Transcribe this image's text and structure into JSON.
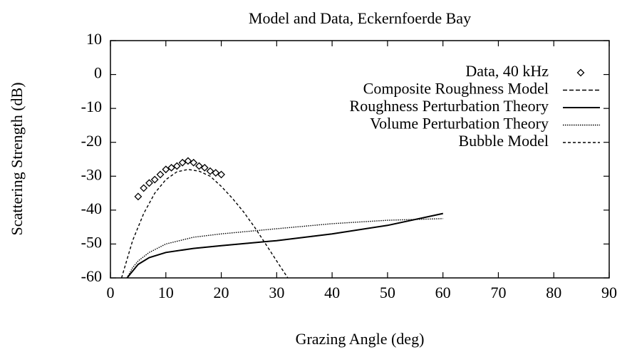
{
  "chart_data": {
    "type": "line",
    "title": "Model and Data, Eckernfoerde Bay",
    "xlabel": "Grazing Angle (deg)",
    "ylabel": "Scattering Strength (dB)",
    "xlim": [
      0,
      90
    ],
    "ylim": [
      -60,
      10
    ],
    "xticks": [
      0,
      10,
      20,
      30,
      40,
      50,
      60,
      70,
      80,
      90
    ],
    "yticks": [
      -60,
      -50,
      -40,
      -30,
      -20,
      -10,
      0,
      10
    ],
    "legend": "top-right",
    "series": [
      {
        "name": "Data, 40 kHz",
        "color": "#000000",
        "style": "points",
        "x": [
          5,
          6,
          7,
          8,
          9,
          10,
          11,
          12,
          13,
          14,
          15,
          16,
          17,
          18,
          19,
          20
        ],
        "values": [
          -36,
          -33.5,
          -32,
          -31,
          -29.5,
          -28,
          -27.5,
          -27,
          -26,
          -25.5,
          -26,
          -27,
          -27.5,
          -28.5,
          -29,
          -29.5
        ]
      },
      {
        "name": "Composite Roughness Model",
        "color": "#000000",
        "style": "dashed",
        "x": [
          3,
          4,
          5,
          7,
          10,
          15,
          20,
          30,
          40,
          50,
          60
        ],
        "values": [
          -60,
          -58,
          -56,
          -54,
          -52.5,
          -51.3,
          -50.5,
          -49,
          -47,
          -44.5,
          -41
        ]
      },
      {
        "name": "Roughness Perturbation Theory",
        "color": "#000000",
        "style": "solid",
        "x": [
          3,
          4,
          5,
          7,
          10,
          15,
          20,
          30,
          40,
          50,
          60
        ],
        "values": [
          -60,
          -58,
          -56,
          -54,
          -52.5,
          -51.3,
          -50.5,
          -49,
          -47,
          -44.5,
          -41
        ]
      },
      {
        "name": "Volume Perturbation Theory",
        "color": "#000000",
        "style": "dotted",
        "x": [
          3,
          4,
          5,
          7,
          10,
          15,
          20,
          30,
          40,
          50,
          60
        ],
        "values": [
          -60,
          -57,
          -55,
          -52.5,
          -50,
          -48,
          -47,
          -45.5,
          -44,
          -43,
          -42.5
        ]
      },
      {
        "name": "Bubble Model",
        "color": "#000000",
        "style": "dashed-fine",
        "x": [
          2,
          4,
          6,
          8,
          10,
          12,
          14,
          16,
          18,
          20,
          22,
          24,
          26,
          28,
          30,
          32
        ],
        "values": [
          -60,
          -49,
          -41,
          -35,
          -31,
          -28.7,
          -28,
          -28.5,
          -30,
          -33,
          -36.5,
          -40.5,
          -45,
          -50,
          -55,
          -60
        ]
      }
    ]
  }
}
